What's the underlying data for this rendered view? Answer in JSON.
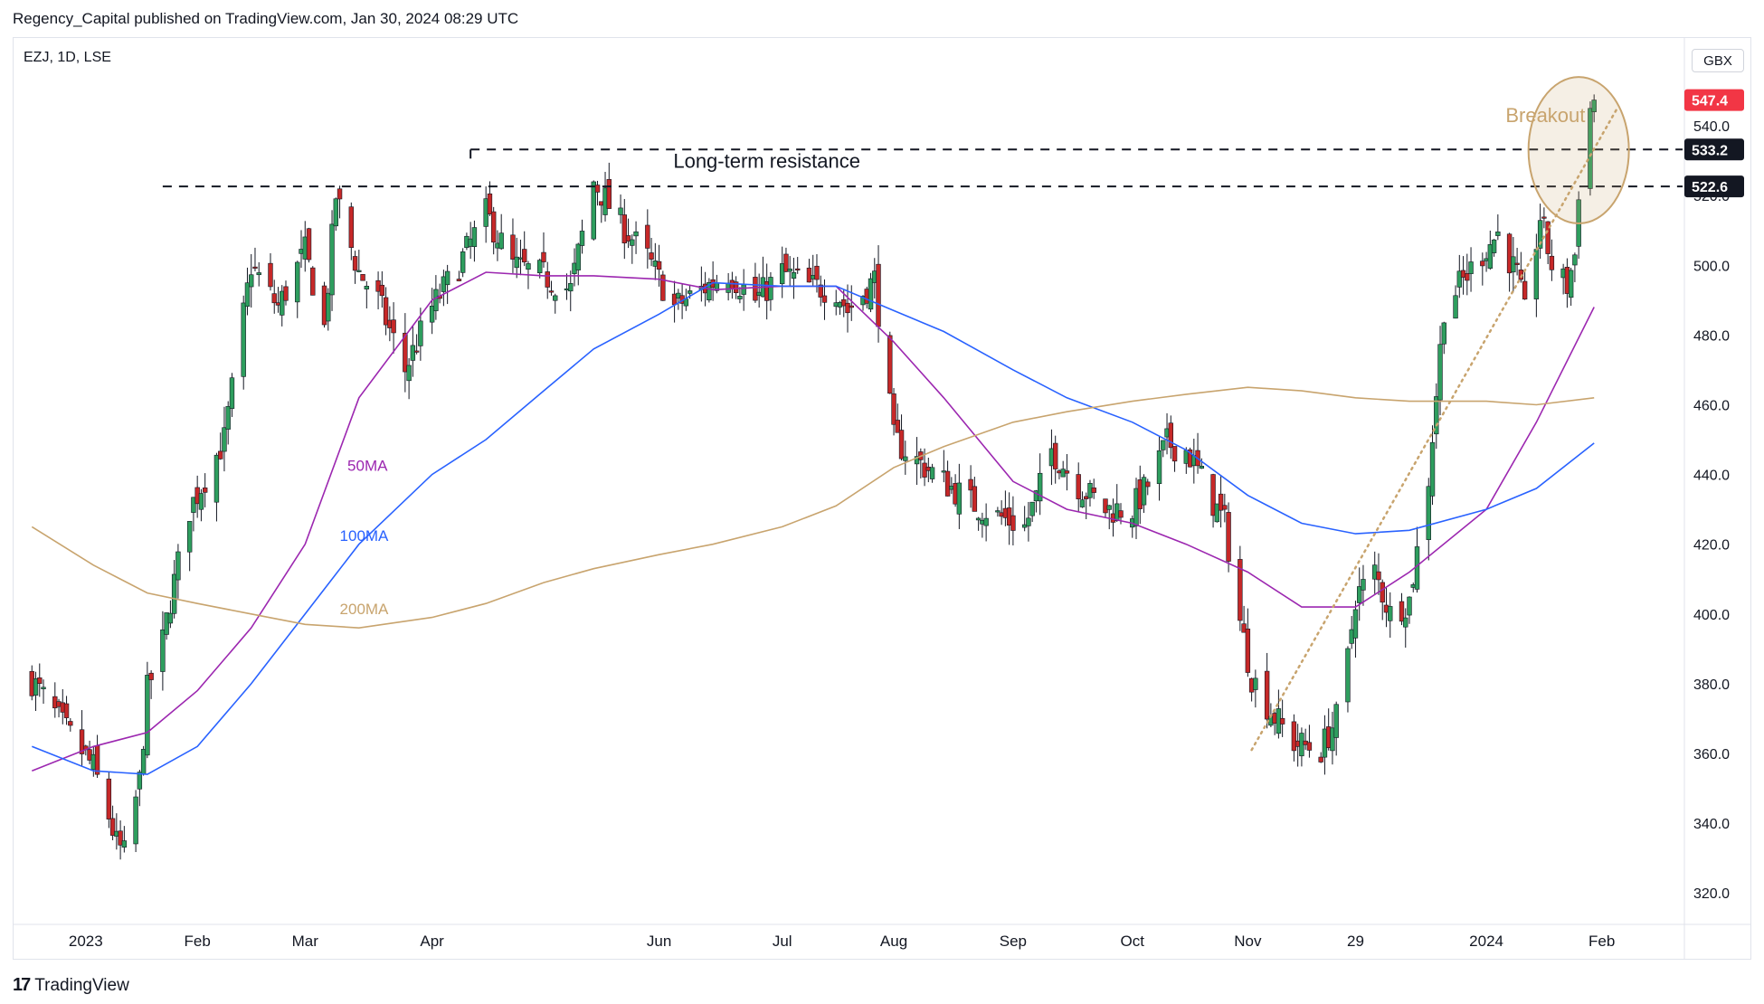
{
  "header": {
    "publisher_line": "Regency_Capital published on TradingView.com, Jan 30, 2024 08:29 UTC"
  },
  "chart_header": {
    "symbol": "EZJ, 1D, LSE",
    "currency": "GBX"
  },
  "footer": {
    "brand": "TradingView",
    "logo_glyph": "17"
  },
  "colors": {
    "up": "#26a69a",
    "up_fill": "#2e9e5e",
    "down": "#e53935",
    "down_fill": "#c62828",
    "ma50": "#9c27b0",
    "ma100": "#2962ff",
    "ma200": "#c8a46e",
    "price_tag_last": "#f23645",
    "price_tag_level": "#131722",
    "breakout": "#c8a46e",
    "trendline": "#c8a46e",
    "grid": "#f0f3fa",
    "axis_text": "#131722"
  },
  "chart_data": {
    "type": "candlestick",
    "title": "",
    "symbol": "EZJ",
    "interval": "1D",
    "exchange": "LSE",
    "currency": "GBX",
    "ylim": [
      312,
      560
    ],
    "y_ticks": [
      320.0,
      340.0,
      360.0,
      380.0,
      400.0,
      420.0,
      440.0,
      460.0,
      480.0,
      500.0,
      520.0,
      540.0
    ],
    "x_labels": [
      "2023",
      "Feb",
      "Mar",
      "Apr",
      "Jun",
      "Jul",
      "Aug",
      "Sep",
      "Oct",
      "Nov",
      "29",
      "2024",
      "Feb"
    ],
    "x_label_dates": [
      "2023-01-03",
      "2023-02-01",
      "2023-03-01",
      "2023-04-03",
      "2023-06-01",
      "2023-07-03",
      "2023-08-01",
      "2023-09-01",
      "2023-10-02",
      "2023-11-01",
      "2023-11-29",
      "2024-01-02",
      "2024-02-01"
    ],
    "close_series": {
      "dates": [
        "2022-12-20",
        "2022-12-28",
        "2023-01-05",
        "2023-01-09",
        "2023-01-11",
        "2023-01-13",
        "2023-01-17",
        "2023-01-19",
        "2023-01-23",
        "2023-01-25",
        "2023-01-30",
        "2023-02-08",
        "2023-02-15",
        "2023-02-22",
        "2023-03-01",
        "2023-03-06",
        "2023-03-09",
        "2023-03-13",
        "2023-03-15",
        "2023-03-20",
        "2023-03-27",
        "2023-04-03",
        "2023-04-10",
        "2023-04-17",
        "2023-04-24",
        "2023-05-02",
        "2023-05-09",
        "2023-05-15",
        "2023-05-22",
        "2023-05-29",
        "2023-06-05",
        "2023-06-12",
        "2023-06-19",
        "2023-06-26",
        "2023-07-03",
        "2023-07-10",
        "2023-07-17",
        "2023-07-20",
        "2023-07-24",
        "2023-07-27",
        "2023-08-01",
        "2023-08-07",
        "2023-08-14",
        "2023-08-21",
        "2023-08-28",
        "2023-09-04",
        "2023-09-07",
        "2023-09-11",
        "2023-09-18",
        "2023-09-25",
        "2023-10-02",
        "2023-10-06",
        "2023-10-11",
        "2023-10-16",
        "2023-10-19",
        "2023-10-23",
        "2023-10-26",
        "2023-10-30",
        "2023-11-02",
        "2023-11-07",
        "2023-11-13",
        "2023-11-20",
        "2023-11-24",
        "2023-11-27",
        "2023-11-29",
        "2023-12-04",
        "2023-12-08",
        "2023-12-13",
        "2023-12-18",
        "2023-12-22",
        "2024-01-02",
        "2024-01-05",
        "2024-01-10",
        "2024-01-12",
        "2024-01-16",
        "2024-01-19",
        "2024-01-23",
        "2024-01-25",
        "2024-01-26",
        "2024-01-29",
        "2024-01-30"
      ],
      "close": [
        381,
        368,
        356,
        342,
        334,
        331,
        352,
        378,
        392,
        404,
        430,
        450,
        500,
        488,
        504,
        482,
        520,
        505,
        498,
        490,
        470,
        488,
        500,
        515,
        500,
        497,
        493,
        524,
        512,
        502,
        488,
        493,
        498,
        490,
        498,
        494,
        493,
        487,
        492,
        496,
        450,
        444,
        438,
        432,
        428,
        425,
        433,
        447,
        437,
        430,
        430,
        437,
        449,
        447,
        441,
        432,
        426,
        398,
        382,
        372,
        363,
        361,
        370,
        387,
        405,
        412,
        400,
        404,
        439,
        488,
        505,
        509,
        497,
        486,
        514,
        500,
        494,
        503,
        522,
        528,
        547
      ]
    },
    "series": [
      {
        "name": "50MA",
        "x": [
          "2022-12-20",
          "2023-01-05",
          "2023-01-19",
          "2023-02-01",
          "2023-02-15",
          "2023-03-01",
          "2023-03-15",
          "2023-04-03",
          "2023-04-17",
          "2023-05-02",
          "2023-05-15",
          "2023-06-01",
          "2023-06-15",
          "2023-07-03",
          "2023-07-17",
          "2023-08-01",
          "2023-08-14",
          "2023-09-01",
          "2023-09-15",
          "2023-10-02",
          "2023-10-16",
          "2023-11-01",
          "2023-11-15",
          "2023-11-29",
          "2023-12-13",
          "2024-01-02",
          "2024-01-15",
          "2024-01-30"
        ],
        "y": [
          355,
          362,
          366,
          378,
          396,
          420,
          462,
          490,
          498,
          497,
          497,
          496,
          493,
          494,
          494,
          478,
          462,
          438,
          430,
          426,
          420,
          412,
          402,
          402,
          412,
          430,
          455,
          488
        ]
      },
      {
        "name": "100MA",
        "x": [
          "2022-12-20",
          "2023-01-05",
          "2023-01-19",
          "2023-02-01",
          "2023-02-15",
          "2023-03-01",
          "2023-03-15",
          "2023-04-03",
          "2023-04-17",
          "2023-05-02",
          "2023-05-15",
          "2023-06-01",
          "2023-06-15",
          "2023-07-03",
          "2023-07-17",
          "2023-08-01",
          "2023-08-14",
          "2023-09-01",
          "2023-09-15",
          "2023-10-02",
          "2023-10-16",
          "2023-11-01",
          "2023-11-15",
          "2023-11-29",
          "2023-12-13",
          "2024-01-02",
          "2024-01-15",
          "2024-01-30"
        ],
        "y": [
          362,
          355,
          354,
          362,
          380,
          400,
          420,
          440,
          450,
          464,
          476,
          486,
          495,
          494,
          494,
          487,
          481,
          470,
          462,
          455,
          447,
          434,
          426,
          423,
          424,
          430,
          436,
          449
        ]
      },
      {
        "name": "200MA",
        "x": [
          "2022-12-20",
          "2023-01-05",
          "2023-01-19",
          "2023-02-01",
          "2023-02-15",
          "2023-03-01",
          "2023-03-15",
          "2023-04-03",
          "2023-04-17",
          "2023-05-02",
          "2023-05-15",
          "2023-06-01",
          "2023-06-15",
          "2023-07-03",
          "2023-07-17",
          "2023-08-01",
          "2023-08-14",
          "2023-09-01",
          "2023-09-15",
          "2023-10-02",
          "2023-10-16",
          "2023-11-01",
          "2023-11-15",
          "2023-11-29",
          "2023-12-13",
          "2024-01-02",
          "2024-01-15",
          "2024-01-30"
        ],
        "y": [
          425,
          414,
          406,
          403,
          400,
          397,
          396,
          399,
          403,
          409,
          413,
          417,
          420,
          425,
          431,
          442,
          448,
          455,
          458,
          461,
          463,
          465,
          464,
          462,
          461,
          461,
          460,
          462
        ]
      }
    ],
    "price_tags": [
      {
        "label": "547.4",
        "value": 547.4,
        "kind": "last"
      },
      {
        "label": "533.2",
        "value": 533.2,
        "kind": "level"
      },
      {
        "label": "522.6",
        "value": 522.6,
        "kind": "level"
      }
    ],
    "horizontal_levels": [
      {
        "value": 533.2,
        "from": "2023-04-13",
        "to": "2024-01-31",
        "style": "dashed"
      },
      {
        "value": 522.6,
        "from": "2023-01-23",
        "to": "2024-01-31",
        "style": "dashed"
      }
    ],
    "trendline": {
      "from": {
        "date": "2023-11-02",
        "value": 361
      },
      "to": {
        "date": "2024-02-05",
        "value": 545
      },
      "style": "dotted"
    },
    "annotations": [
      {
        "text": "Long-term resistance",
        "date": "2023-06-29",
        "value": 528
      },
      {
        "text": "Breakout",
        "date": "2024-01-07",
        "value": 541
      },
      {
        "text": "50MA",
        "date": "2023-03-12",
        "value": 441
      },
      {
        "text": "100MA",
        "date": "2023-03-10",
        "value": 421
      },
      {
        "text": "200MA",
        "date": "2023-03-10",
        "value": 400
      }
    ],
    "breakout_ellipse": {
      "center_date": "2024-01-26",
      "center_value": 533,
      "date_halfwidth_days": 9,
      "value_halfheight": 21
    },
    "grid": false
  }
}
